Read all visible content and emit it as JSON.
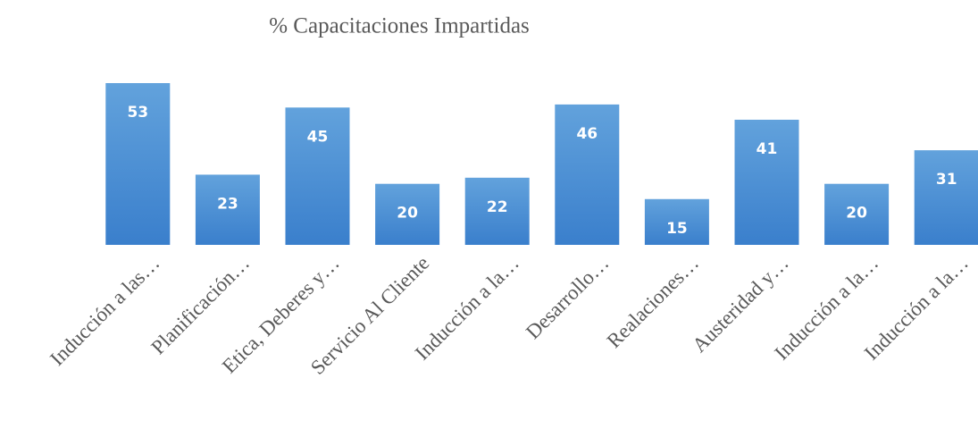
{
  "chart_data": {
    "type": "bar",
    "title": "% Capacitaciones  Impartidas",
    "categories": [
      "Inducción a las…",
      "Planificación…",
      "Etica, Deberes y…",
      "Servicio Al Cliente",
      "Inducción a la…",
      "Desarrollo…",
      "Realaciones…",
      "Austeridad y…",
      "Inducción a la…",
      "Inducción a la…"
    ],
    "values": [
      53,
      23,
      45,
      20,
      22,
      46,
      15,
      41,
      20,
      31
    ],
    "color": "#4a8fd6"
  }
}
